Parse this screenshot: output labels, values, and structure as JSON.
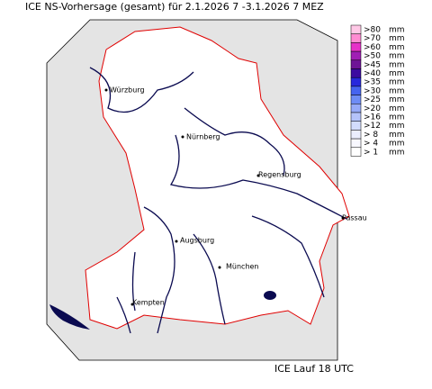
{
  "title": "ICE NS-Vorhersage (gesamt) für 2.1.2026 7 -3.1.2026 7 MEZ",
  "legend": [
    {
      "label": ">80",
      "unit": "mm",
      "color": "#ffc8e6"
    },
    {
      "label": ">70",
      "unit": "mm",
      "color": "#ff8cd2"
    },
    {
      "label": ">60",
      "unit": "mm",
      "color": "#e632c8"
    },
    {
      "label": ">50",
      "unit": "mm",
      "color": "#a01eb4"
    },
    {
      "label": ">45",
      "unit": "mm",
      "color": "#6e1496"
    },
    {
      "label": ">40",
      "unit": "mm",
      "color": "#3c0aa0"
    },
    {
      "label": ">35",
      "unit": "mm",
      "color": "#2828dc"
    },
    {
      "label": ">30",
      "unit": "mm",
      "color": "#4664f0"
    },
    {
      "label": ">25",
      "unit": "mm",
      "color": "#6e8cf5"
    },
    {
      "label": ">20",
      "unit": "mm",
      "color": "#96aaf8"
    },
    {
      "label": ">16",
      "unit": "mm",
      "color": "#b4c3fa"
    },
    {
      "label": ">12",
      "unit": "mm",
      "color": "#d2dcfc"
    },
    {
      "label": "> 8",
      "unit": "mm",
      "color": "#ebeefe"
    },
    {
      "label": "> 4",
      "unit": "mm",
      "color": "#f8f8ff"
    },
    {
      "label": "> 1",
      "unit": "mm",
      "color": "#ffffff"
    }
  ],
  "cities": [
    "Würzburg",
    "Nürnberg",
    "Regensburg",
    "Passau",
    "Augsburg",
    "München",
    "Kempten"
  ],
  "footer": "ICE Lauf 18 UTC"
}
